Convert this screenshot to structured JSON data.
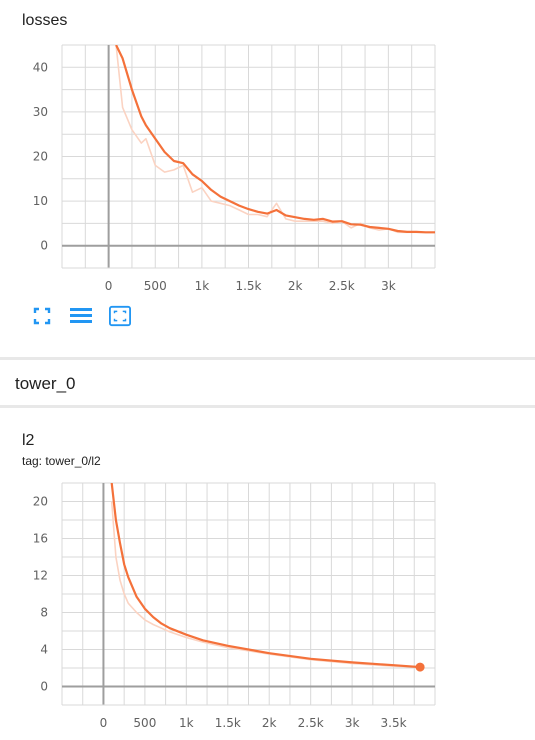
{
  "losses_card": {
    "title": "losses"
  },
  "toolbar": {
    "buttons": [
      {
        "name": "fit-domain-icon",
        "icon": "fullscreen-icon"
      },
      {
        "name": "toggle-log-icon",
        "icon": "list-icon"
      },
      {
        "name": "expand-chart-icon",
        "icon": "fit-screen-icon"
      }
    ]
  },
  "group": {
    "title": "tower_0"
  },
  "l2_card": {
    "title": "l2",
    "tag": "tag: tower_0/l2"
  },
  "colors": {
    "line": "#f4713a",
    "line_raw": "#fbd3c2",
    "grid": "#d9d9d9",
    "axis": "#9e9e9e",
    "icon": "#2196f3"
  },
  "chart_data": [
    {
      "type": "line",
      "title": "losses",
      "xlabel": "",
      "ylabel": "",
      "xlim": [
        -500,
        3500
      ],
      "ylim": [
        -5,
        45
      ],
      "x_ticks": [
        0,
        500,
        1000,
        1500,
        2000,
        2500,
        3000
      ],
      "x_tick_labels": [
        "0",
        "500",
        "1k",
        "1.5k",
        "2k",
        "2.5k",
        "3k"
      ],
      "y_ticks": [
        0,
        10,
        20,
        30,
        40
      ],
      "y_tick_labels": [
        "0",
        "10",
        "20",
        "30",
        "40"
      ],
      "grid": true,
      "series": [
        {
          "role": "smoothed",
          "x": [
            80,
            150,
            250,
            350,
            400,
            500,
            600,
            700,
            800,
            900,
            1000,
            1100,
            1200,
            1300,
            1400,
            1500,
            1600,
            1700,
            1800,
            1900,
            2000,
            2100,
            2200,
            2300,
            2400,
            2500,
            2600,
            2700,
            2800,
            2900,
            3000,
            3100,
            3200,
            3300,
            3400,
            3500
          ],
          "y": [
            45,
            42,
            35,
            29,
            27,
            24,
            21,
            19,
            18.5,
            16,
            14.5,
            12.5,
            11,
            10,
            9,
            8.2,
            7.6,
            7.2,
            8,
            6.8,
            6.4,
            6,
            5.8,
            6,
            5.4,
            5.5,
            4.8,
            4.7,
            4.2,
            4,
            3.8,
            3.3,
            3.1,
            3.1,
            3,
            3
          ]
        },
        {
          "role": "raw",
          "x": [
            80,
            150,
            250,
            350,
            400,
            500,
            600,
            700,
            800,
            900,
            1000,
            1100,
            1200,
            1300,
            1400,
            1500,
            1600,
            1700,
            1800,
            1900,
            2000,
            2100,
            2200,
            2300,
            2400,
            2500,
            2600,
            2700,
            2800,
            2900,
            3000,
            3100,
            3200,
            3300,
            3400,
            3500
          ],
          "y": [
            45,
            31,
            26,
            23,
            24,
            18,
            16.5,
            17,
            18,
            12,
            13,
            10,
            9.5,
            9,
            8,
            7,
            7,
            6.5,
            9.5,
            6,
            5.5,
            5.5,
            5.5,
            5.5,
            5,
            5.5,
            4,
            5,
            4,
            3.5,
            3.8,
            3,
            3,
            3,
            3,
            3
          ]
        }
      ]
    },
    {
      "type": "line",
      "title": "l2",
      "xlabel": "",
      "ylabel": "",
      "xlim": [
        -500,
        4000
      ],
      "ylim": [
        -2,
        22
      ],
      "x_ticks": [
        0,
        500,
        1000,
        1500,
        2000,
        2500,
        3000,
        3500
      ],
      "x_tick_labels": [
        "0",
        "500",
        "1k",
        "1.5k",
        "2k",
        "2.5k",
        "3k",
        "3.5k"
      ],
      "y_ticks": [
        0,
        4,
        8,
        12,
        16,
        20
      ],
      "y_tick_labels": [
        "0",
        "4",
        "8",
        "12",
        "16",
        "20"
      ],
      "grid": true,
      "series": [
        {
          "role": "smoothed",
          "x": [
            100,
            150,
            200,
            250,
            300,
            400,
            500,
            600,
            700,
            800,
            1000,
            1200,
            1500,
            2000,
            2500,
            3000,
            3500,
            3820
          ],
          "y": [
            22,
            18,
            15.5,
            13.2,
            11.8,
            9.7,
            8.4,
            7.5,
            6.8,
            6.3,
            5.6,
            5.0,
            4.4,
            3.6,
            3.0,
            2.6,
            2.3,
            2.1
          ]
        },
        {
          "role": "raw",
          "x": [
            100,
            150,
            200,
            250,
            300,
            400,
            500,
            600,
            700,
            800,
            1000,
            1200,
            1500,
            2000,
            2500,
            3000,
            3500,
            3820
          ],
          "y": [
            20,
            14,
            11.5,
            10,
            9,
            8,
            7.2,
            6.7,
            6.3,
            5.9,
            5.3,
            4.8,
            4.2,
            3.5,
            2.9,
            2.5,
            2.2,
            2.1
          ]
        }
      ],
      "endpoint_marker": {
        "x": 3820,
        "y": 2.1
      }
    }
  ]
}
